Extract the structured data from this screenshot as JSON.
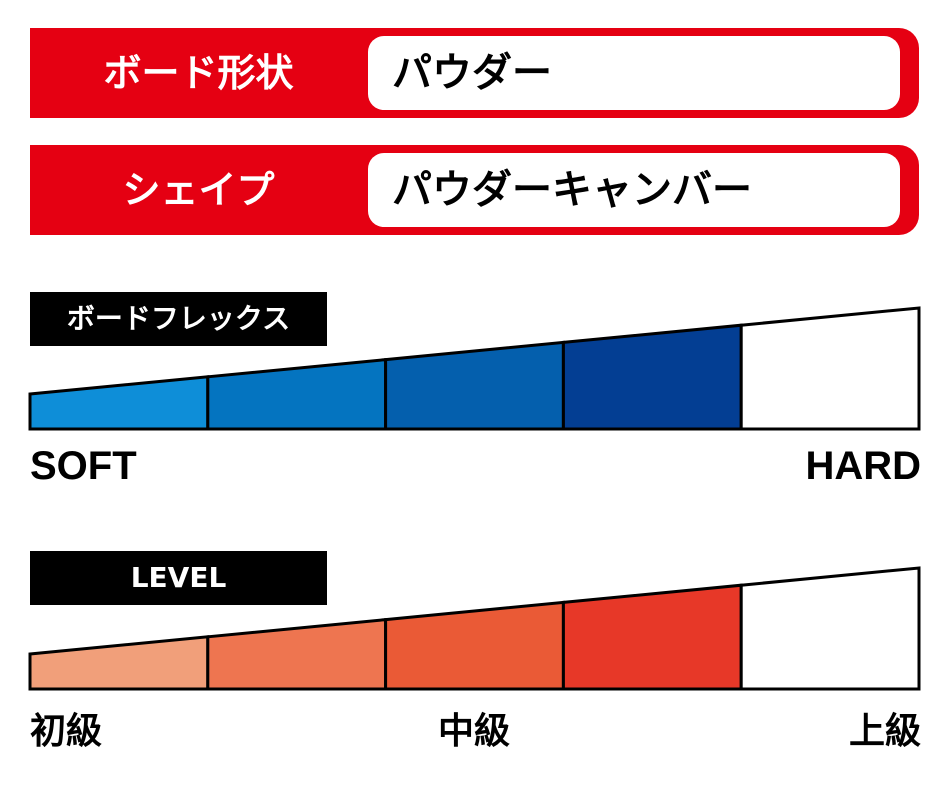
{
  "spec": {
    "board_shape": {
      "label": "ボード形状",
      "value": "パウダー"
    },
    "shape": {
      "label": "シェイプ",
      "value": "パウダーキャンバー"
    }
  },
  "flex": {
    "title": "ボードフレックス",
    "min_label": "SOFT",
    "max_label": "HARD",
    "segments": 5,
    "filled": 4,
    "colors": [
      "#0e8ed8",
      "#0474c0",
      "#045fad",
      "#033e93"
    ]
  },
  "level": {
    "title": "LEVEL",
    "labels": [
      "初級",
      "中級",
      "上級"
    ],
    "segments": 5,
    "filled": 4,
    "colors": [
      "#f19f7a",
      "#ee7550",
      "#ea5a36",
      "#e73828"
    ]
  }
}
